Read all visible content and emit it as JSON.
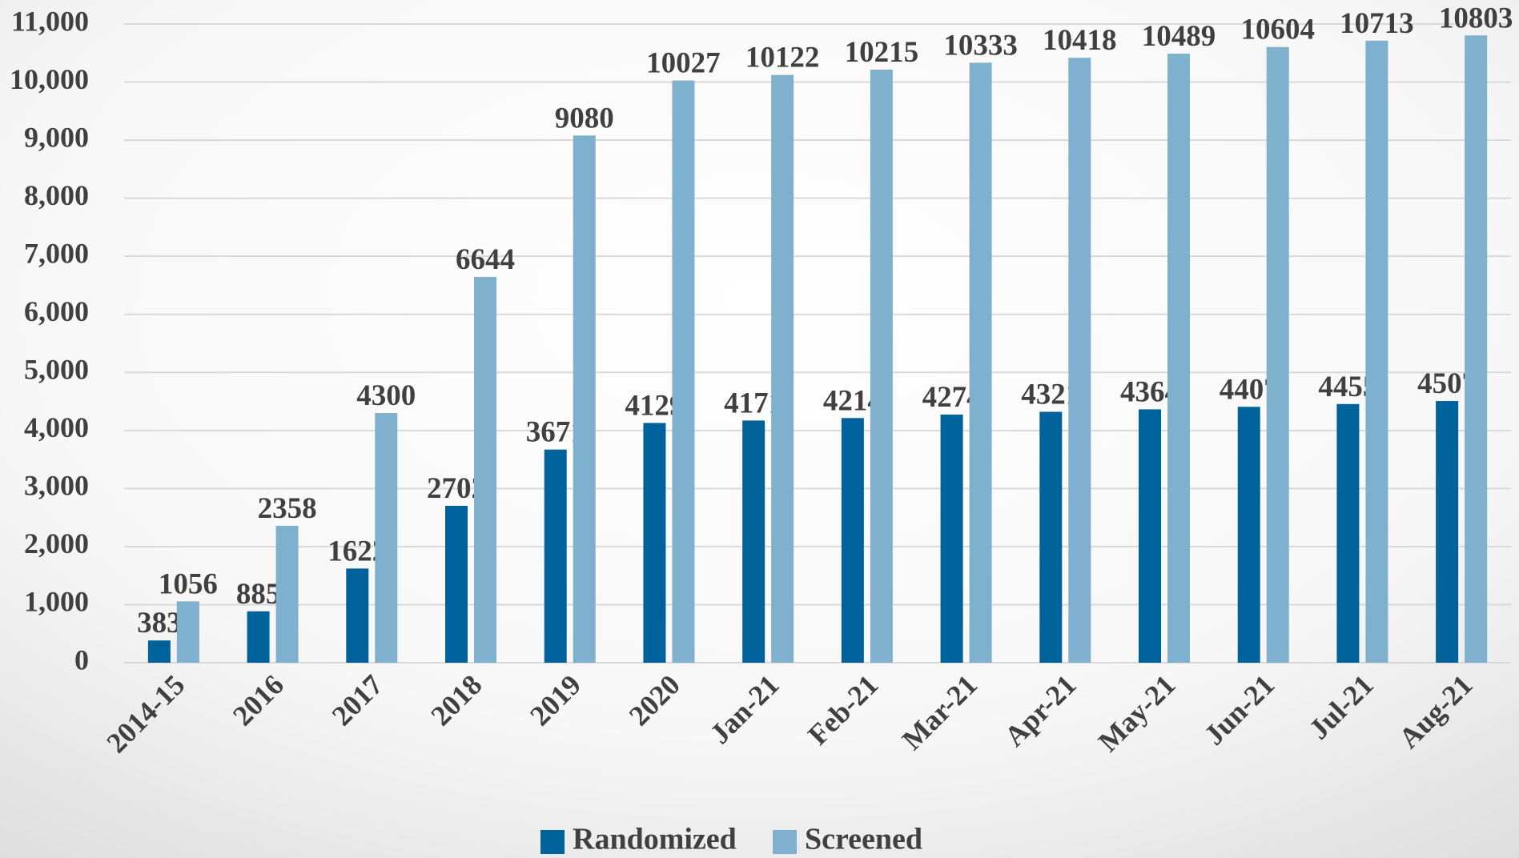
{
  "chart_data": {
    "type": "bar",
    "categories": [
      "2014-15",
      "2016",
      "2017",
      "2018",
      "2019",
      "2020",
      "Jan-21",
      "Feb-21",
      "Mar-21",
      "Apr-21",
      "May-21",
      "Jun-21",
      "Jul-21",
      "Aug-21"
    ],
    "series": [
      {
        "name": "Randomized",
        "color": "#00629b",
        "values": [
          383,
          885,
          1622,
          2702,
          3671,
          4129,
          4171,
          4214,
          4274,
          4321,
          4364,
          4407,
          4455,
          4507
        ]
      },
      {
        "name": "Screened",
        "color": "#7fb0cd",
        "values": [
          1056,
          2358,
          4300,
          6644,
          9080,
          10027,
          10122,
          10215,
          10333,
          10418,
          10489,
          10604,
          10713,
          10803
        ]
      }
    ],
    "ylim": [
      0,
      11000
    ],
    "yticks": [
      0,
      {
        "value": 1000,
        "label": "1,000"
      },
      {
        "value": 2000,
        "label": "2,000"
      },
      {
        "value": 3000,
        "label": "3,000"
      },
      {
        "value": 4000,
        "label": "4,000"
      },
      {
        "value": 5000,
        "label": "5,000"
      },
      {
        "value": 6000,
        "label": "6,000"
      },
      {
        "value": 7000,
        "label": "7,000"
      },
      {
        "value": 8000,
        "label": "8,000"
      },
      {
        "value": 9000,
        "label": "9,000"
      },
      {
        "value": 10000,
        "label": "10,000"
      },
      {
        "value": 11000,
        "label": "11,000"
      }
    ],
    "grid": true,
    "legend": "bottom"
  }
}
